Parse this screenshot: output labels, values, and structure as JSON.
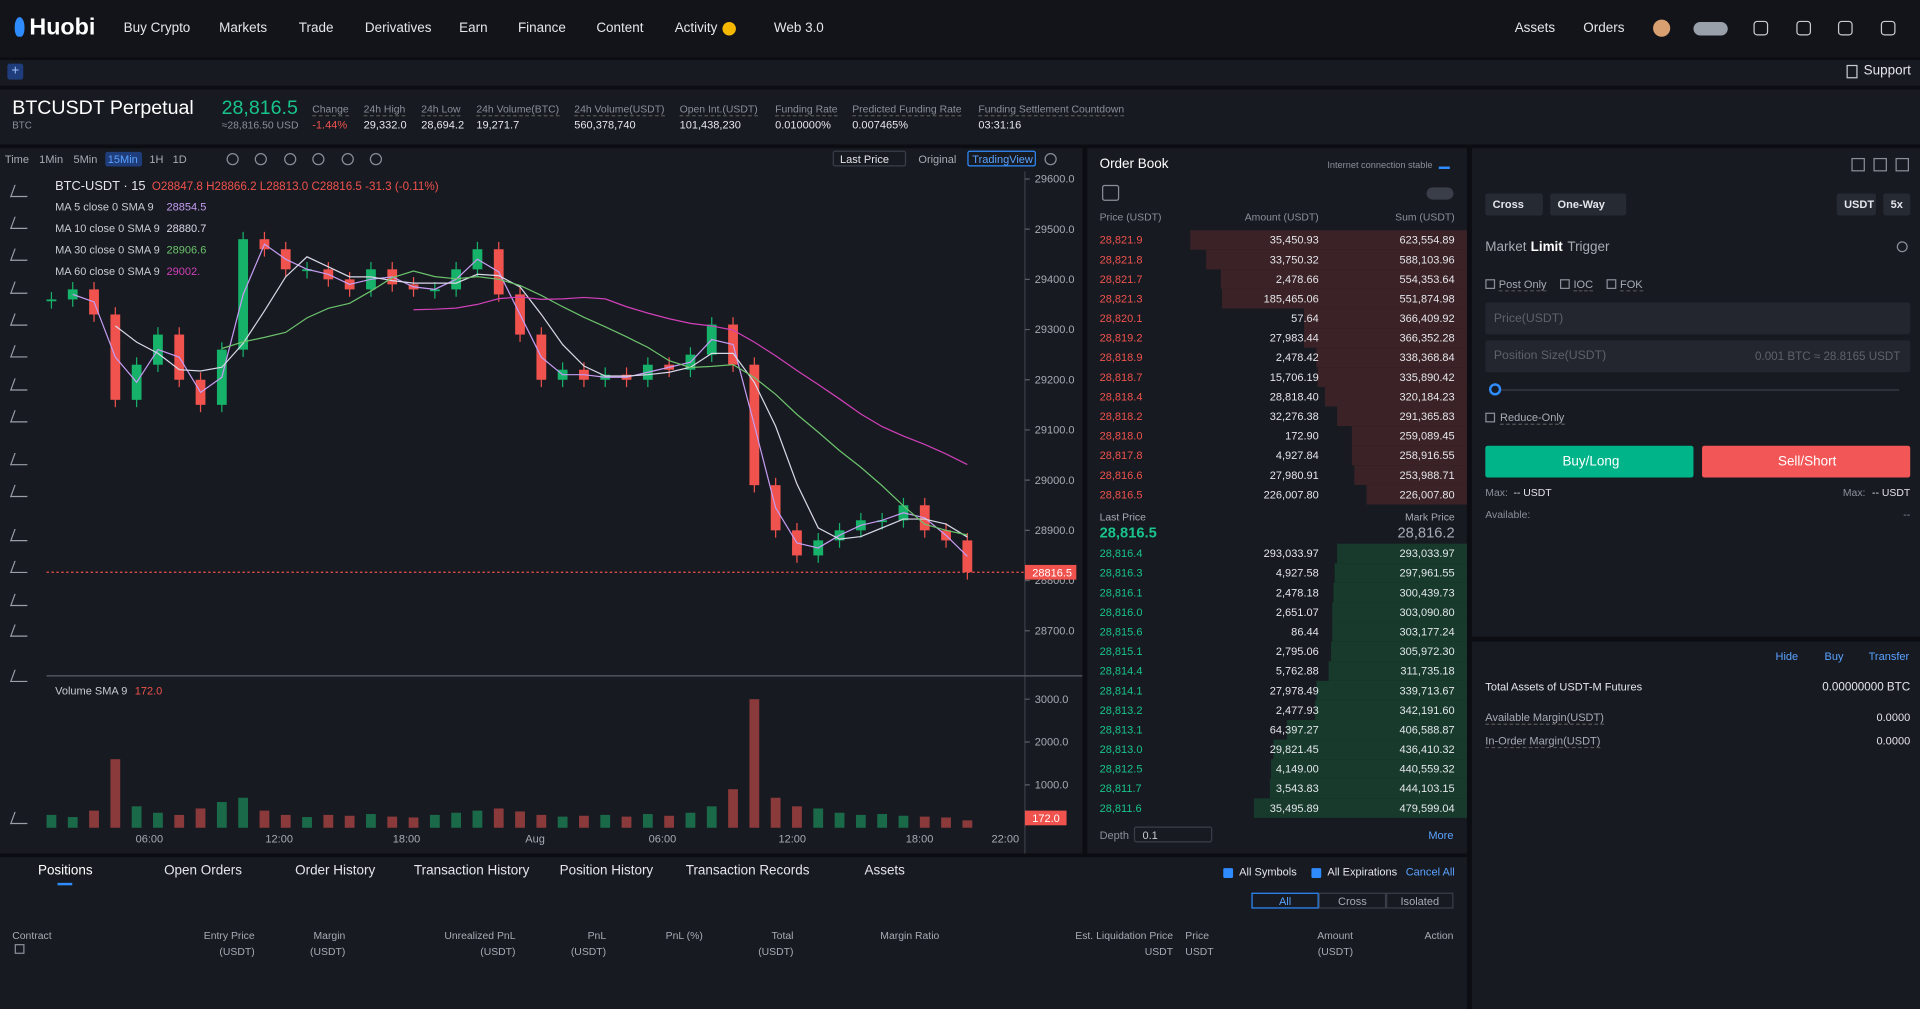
{
  "nav": {
    "logo": "Huobi",
    "menu": [
      "Buy Crypto",
      "Markets",
      "Trade",
      "Derivatives",
      "Earn",
      "Finance",
      "Content",
      "Activity",
      "Web 3.0"
    ],
    "right": [
      "Assets",
      "Orders"
    ],
    "support": "Support"
  },
  "ticker": {
    "symbol": "BTCUSDT Perpetual",
    "base": "BTC",
    "price": "28,816.5",
    "usd": "≈28,816.50 USD",
    "stats": [
      {
        "label": "Change",
        "value": "-1.44%"
      },
      {
        "label": "24h High",
        "value": "29,332.0"
      },
      {
        "label": "24h Low",
        "value": "28,694.2"
      },
      {
        "label": "24h Volume(BTC)",
        "value": "19,271.7"
      },
      {
        "label": "24h Volume(USDT)",
        "value": "560,378,740"
      },
      {
        "label": "Open Int.(USDT)",
        "value": "101,438,230"
      },
      {
        "label": "Funding Rate",
        "value": "0.010000%"
      },
      {
        "label": "Predicted Funding Rate",
        "value": "0.007465%"
      },
      {
        "label": "Funding Settlement Countdown",
        "value": "03:31:16"
      }
    ]
  },
  "toolbar": {
    "intervals": [
      "Time",
      "1Min",
      "5Min",
      "15Min",
      "1H",
      "1D"
    ],
    "price_mode": "Last Price",
    "views": [
      "Original",
      "TradingView"
    ]
  },
  "chart": {
    "type": "candlestick",
    "pair": "BTC-USDT · 15",
    "ohlc": "O28847.8 H28866.2 L28813.0 C28816.5 -31.3 (-0.11%)",
    "ma": [
      {
        "name": "MA 5 close 0 SMA 9",
        "value": "28854.5",
        "color": "#c59cf2"
      },
      {
        "name": "MA 10 close 0 SMA 9",
        "value": "28880.7",
        "color": "#d8d8e8"
      },
      {
        "name": "MA 30 close 0 SMA 9",
        "value": "28906.6",
        "color": "#6cc26c"
      },
      {
        "name": "MA 60 close 0 SMA 9",
        "value": "29002.",
        "color": "#d040b8"
      }
    ],
    "closes": [
      29360,
      29380,
      29330,
      29160,
      29230,
      29290,
      29200,
      29150,
      29260,
      29480,
      29460,
      29420,
      29420,
      29400,
      29380,
      29420,
      29390,
      29380,
      29380,
      29420,
      29460,
      29370,
      29290,
      29200,
      29220,
      29200,
      29210,
      29200,
      29230,
      29220,
      29250,
      29310,
      29230,
      28990,
      28900,
      28850,
      28880,
      28900,
      28920,
      28920,
      28950,
      28900,
      28880,
      28816.5
    ],
    "volumes": [
      300,
      250,
      400,
      1600,
      500,
      350,
      300,
      450,
      600,
      700,
      400,
      300,
      250,
      300,
      280,
      320,
      260,
      240,
      300,
      350,
      400,
      450,
      380,
      300,
      260,
      280,
      300,
      260,
      320,
      280,
      350,
      500,
      900,
      3000,
      700,
      500,
      450,
      350,
      300,
      320,
      280,
      260,
      240,
      172
    ],
    "ylim": [
      28610,
      29615
    ],
    "yticks": [
      {
        "value": 29600,
        "label": "29600.0"
      },
      {
        "value": 29500,
        "label": "29500.0"
      },
      {
        "value": 29400,
        "label": "29400.0"
      },
      {
        "value": 29300,
        "label": "29300.0"
      },
      {
        "value": 29200,
        "label": "29200.0"
      },
      {
        "value": 29100,
        "label": "29100.0"
      },
      {
        "value": 29000,
        "label": "29000.0"
      },
      {
        "value": 28900,
        "label": "28900.0"
      },
      {
        "value": 28800,
        "label": "28800.0"
      },
      {
        "value": 28700,
        "label": "28700.0"
      }
    ],
    "last_tag": "28816.5",
    "last_value": 28816.5,
    "volume_label": "Volume SMA 9",
    "volume_sma": "172.0",
    "vlim": [
      0,
      3200
    ],
    "vticks": [
      {
        "value": 3000,
        "label": "3000.0"
      },
      {
        "value": 2000,
        "label": "2000.0"
      },
      {
        "value": 1000,
        "label": "1000.0"
      }
    ],
    "time_labels": [
      "06:00",
      "12:00",
      "18:00",
      "Aug",
      "06:00",
      "12:00",
      "18:00",
      "22:00"
    ]
  },
  "order_book": {
    "title": "Order Book",
    "status": "Internet connection stable",
    "headers": [
      "Price (USDT)",
      "Amount (USDT)",
      "Sum (USDT)"
    ],
    "asks": [
      [
        "28,821.9",
        "35,450.93",
        "623,554.89"
      ],
      [
        "28,821.8",
        "33,750.32",
        "588,103.96"
      ],
      [
        "28,821.7",
        "2,478.66",
        "554,353.64"
      ],
      [
        "28,821.3",
        "185,465.06",
        "551,874.98"
      ],
      [
        "28,820.1",
        "57.64",
        "366,409.92"
      ],
      [
        "28,819.2",
        "27,983.44",
        "366,352.28"
      ],
      [
        "28,818.9",
        "2,478.42",
        "338,368.84"
      ],
      [
        "28,818.7",
        "15,706.19",
        "335,890.42"
      ],
      [
        "28,818.4",
        "28,818.40",
        "320,184.23"
      ],
      [
        "28,818.2",
        "32,276.38",
        "291,365.83"
      ],
      [
        "28,818.0",
        "172.90",
        "259,089.45"
      ],
      [
        "28,817.8",
        "4,927.84",
        "258,916.55"
      ],
      [
        "28,816.6",
        "27,980.91",
        "253,988.71"
      ],
      [
        "28,816.5",
        "226,007.80",
        "226,007.80"
      ]
    ],
    "last_label": "Last Price",
    "last": "28,816.5",
    "mark_label": "Mark Price",
    "mark": "28,816.2",
    "bids": [
      [
        "28,816.4",
        "293,033.97",
        "293,033.97"
      ],
      [
        "28,816.3",
        "4,927.58",
        "297,961.55"
      ],
      [
        "28,816.1",
        "2,478.18",
        "300,439.73"
      ],
      [
        "28,816.0",
        "2,651.07",
        "303,090.80"
      ],
      [
        "28,815.6",
        "86.44",
        "303,177.24"
      ],
      [
        "28,815.1",
        "2,795.06",
        "305,972.30"
      ],
      [
        "28,814.4",
        "5,762.88",
        "311,735.18"
      ],
      [
        "28,814.1",
        "27,978.49",
        "339,713.67"
      ],
      [
        "28,813.2",
        "2,477.93",
        "342,191.60"
      ],
      [
        "28,813.1",
        "64,397.27",
        "406,588.87"
      ],
      [
        "28,813.0",
        "29,821.45",
        "436,410.32"
      ],
      [
        "28,812.5",
        "4,149.00",
        "440,559.32"
      ],
      [
        "28,811.7",
        "3,543.83",
        "444,103.15"
      ],
      [
        "28,811.6",
        "35,495.89",
        "479,599.04"
      ]
    ],
    "depth_label": "Depth",
    "depth": "0.1",
    "more": "More"
  },
  "trade": {
    "margin_mode": "Cross",
    "position_mode": "One-Way",
    "asset": "USDT",
    "leverage": "5x",
    "tabs": [
      "Market",
      "Limit",
      "Trigger"
    ],
    "options": [
      "Post Only",
      "IOC",
      "FOK"
    ],
    "price_placeholder": "Price(USDT)",
    "size_placeholder": "Position Size(USDT)",
    "size_hint": "0.001 BTC ≈ 28.8165 USDT",
    "reduce_only": "Reduce-Only",
    "buy": "Buy/Long",
    "sell": "Sell/Short",
    "max_label": "Max:",
    "max_buy": "-- USDT",
    "max_sell": "-- USDT",
    "available_label": "Available:",
    "available": "--"
  },
  "assets": {
    "actions": [
      "Hide",
      "Buy",
      "Transfer"
    ],
    "total_label": "Total Assets of USDT-M Futures",
    "total": "0.00000000 BTC",
    "rows": [
      {
        "label": "Available Margin(USDT)",
        "value": "0.0000"
      },
      {
        "label": "In-Order Margin(USDT)",
        "value": "0.0000"
      }
    ]
  },
  "positions": {
    "tabs": [
      "Positions",
      "Open Orders",
      "Order History",
      "Transaction History",
      "Position History",
      "Transaction Records",
      "Assets"
    ],
    "filters": [
      "All Symbols",
      "All Expirations"
    ],
    "cancel_all": "Cancel All",
    "modes": [
      "All",
      "Cross",
      "Isolated"
    ],
    "columns": [
      {
        "label": "Contract"
      },
      {
        "label": "Entry Price",
        "unit": "(USDT)"
      },
      {
        "label": "Margin",
        "unit": "(USDT)"
      },
      {
        "label": "Unrealized PnL",
        "unit": "(USDT)"
      },
      {
        "label": "PnL",
        "unit": "(USDT)"
      },
      {
        "label": "PnL (%)"
      },
      {
        "label": "Total",
        "unit": "(USDT)"
      },
      {
        "label": "Margin Ratio"
      },
      {
        "label": "Est. Liquidation Price",
        "unit": "USDT"
      },
      {
        "label": "Price",
        "unit": "USDT"
      },
      {
        "label": "Amount",
        "unit": "(USDT)"
      },
      {
        "label": "Action"
      }
    ]
  }
}
